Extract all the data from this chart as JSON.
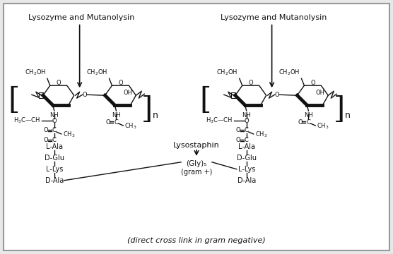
{
  "bg_color": "#e8e8e8",
  "border_color": "#aaaaaa",
  "line_color": "#111111",
  "text_color": "#111111",
  "fig_width": 5.56,
  "fig_height": 3.6,
  "dpi": 100,
  "bottom_text": "(direct cross link in gram negative)",
  "left_label_lysozyme": "Lysozyme and Mutanolysin",
  "right_label_lysozyme": "Lysozyme and Mutanolysin",
  "lysostaphin_label": "Lysostaphin",
  "gly5_label": "(Gly)₅",
  "gram_plus_label": "(gram +)",
  "left_peptide": [
    "L-Ala",
    "D-Glu",
    "L-Lys",
    "D-Ala"
  ],
  "right_peptide": [
    "L-Ala",
    "D-Glu",
    "L-Lys",
    "D-Ala"
  ],
  "n_label": "n"
}
